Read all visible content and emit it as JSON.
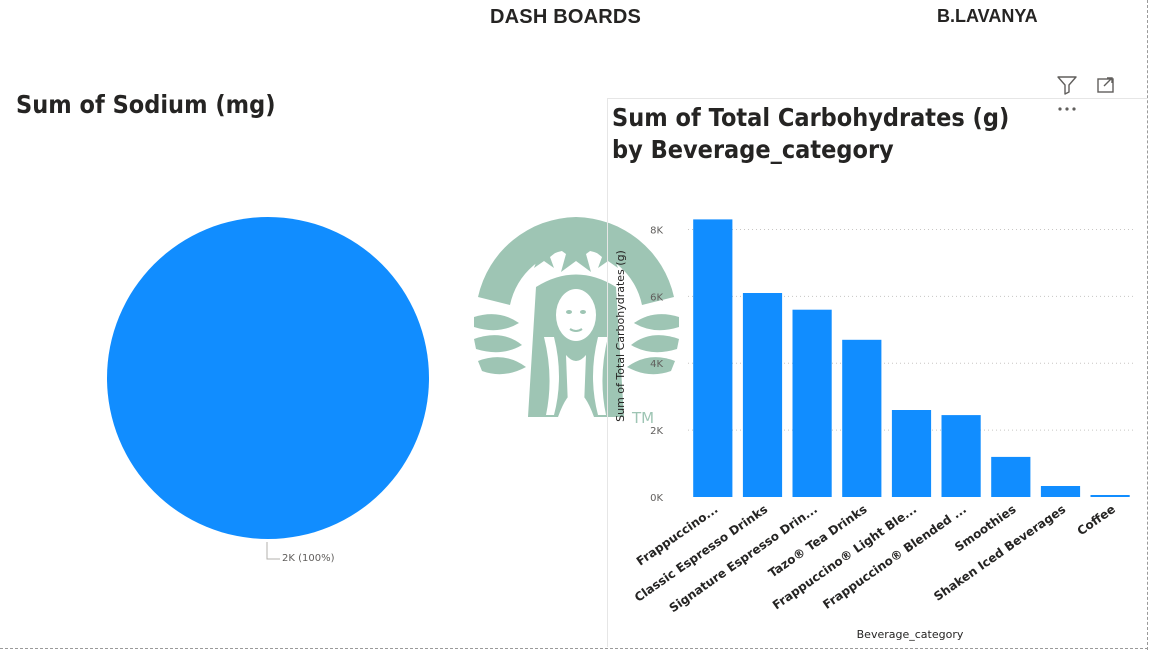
{
  "header": {
    "title": "DASH BOARDS",
    "author": "B.LAVANYA"
  },
  "visual_header_icons": [
    "filter-icon",
    "focus-mode-icon",
    "more-options-icon"
  ],
  "logo": {
    "name": "starbucks-siren-logo",
    "mark": "TM",
    "color": "#9ec5b4"
  },
  "colors": {
    "accent": "#118dff",
    "text": "#252423",
    "muted": "#605e5c"
  },
  "chart_data": [
    {
      "type": "pie",
      "title": "Sum of Sodium (mg)",
      "slices": [
        {
          "label": "",
          "value": 2000,
          "percent": 100
        }
      ],
      "data_labels": [
        "2K (100%)"
      ]
    },
    {
      "type": "bar",
      "title": "Sum of Total Carbohydrates (g) by Beverage_category",
      "xlabel": "Beverage_category",
      "ylabel": "Sum of Total Carbohydrates (g)",
      "ylim": [
        0,
        9000
      ],
      "yticks": [
        0,
        2000,
        4000,
        6000,
        8000
      ],
      "ytick_labels": [
        "0K",
        "2K",
        "4K",
        "6K",
        "8K"
      ],
      "grid": true,
      "categories": [
        "Frappuccino...",
        "Classic Espresso Drinks",
        "Signature Espresso Drin...",
        "Tazo® Tea Drinks",
        "Frappuccino® Light Ble...",
        "Frappuccino® Blended ...",
        "Smoothies",
        "Shaken Iced Beverages",
        "Coffee"
      ],
      "values": [
        8300,
        6100,
        5600,
        4700,
        2600,
        2450,
        1200,
        330,
        60
      ]
    }
  ]
}
